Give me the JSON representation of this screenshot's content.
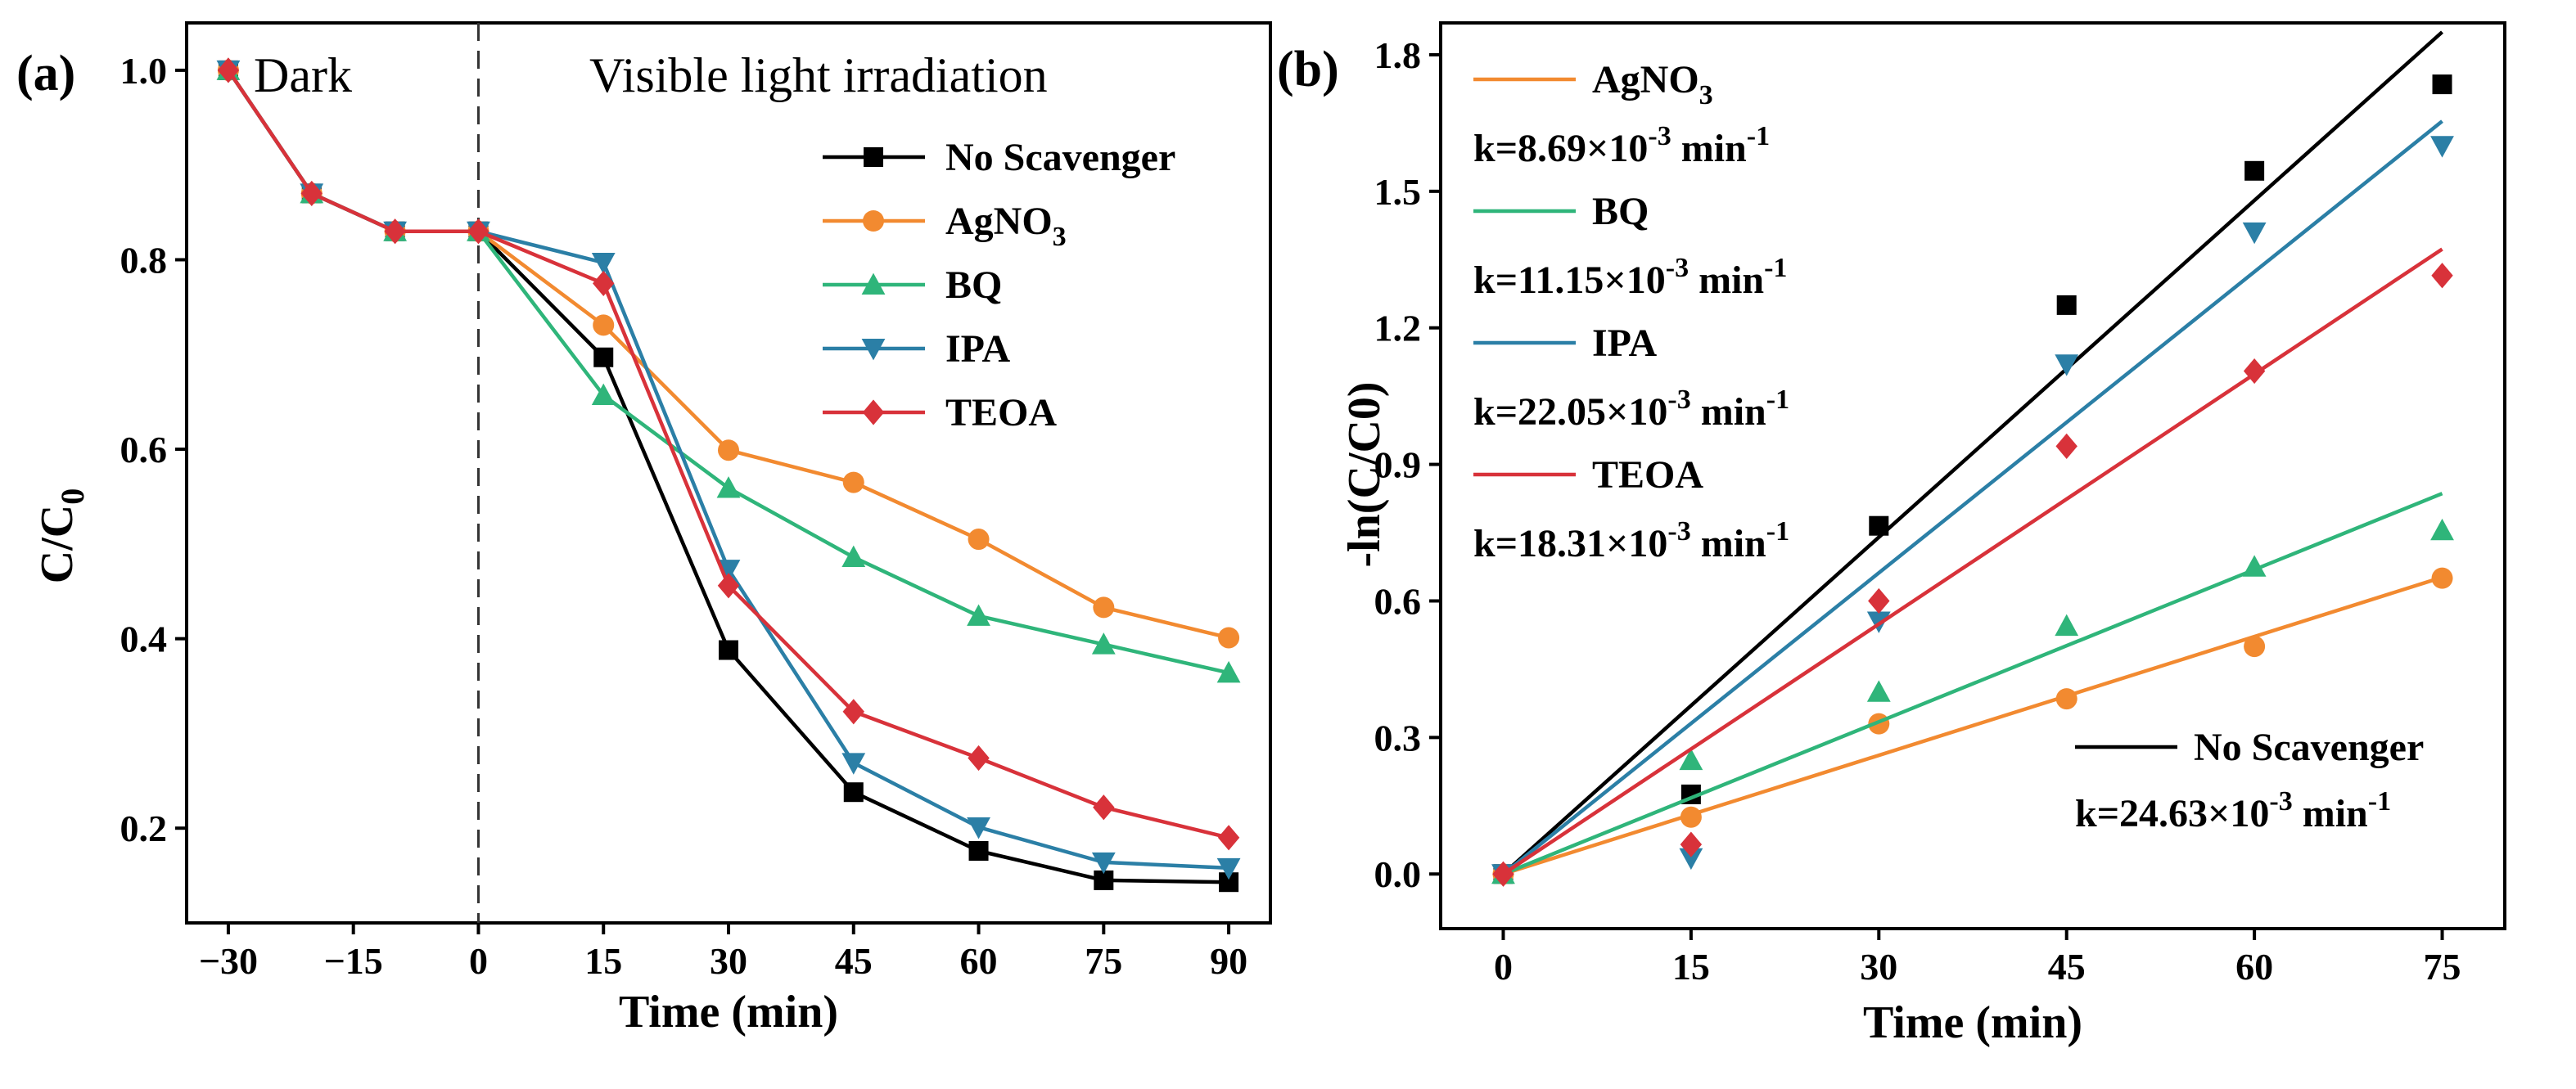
{
  "chart_data": [
    {
      "panel": "(a)",
      "type": "line",
      "xlabel": "Time (min)",
      "ylabel_main": "C/C",
      "ylabel_sub": "0",
      "xlim": [
        -35,
        95
      ],
      "ylim": [
        0.1,
        1.05
      ],
      "xticks": [
        -30,
        -15,
        0,
        15,
        30,
        45,
        60,
        75,
        90
      ],
      "yticks": [
        0.2,
        0.4,
        0.6,
        0.8,
        1.0
      ],
      "xtick_labels": [
        "−30",
        "−15",
        "0",
        "15",
        "30",
        "45",
        "60",
        "75",
        "90"
      ],
      "ytick_labels": [
        "0.2",
        "0.4",
        "0.6",
        "0.8",
        "1.0"
      ],
      "annotations": {
        "dark": "Dark",
        "light": "Visible light irradiation",
        "divider_x": 0
      },
      "legend_position": "top-right",
      "x": [
        -30,
        -20,
        -10,
        0,
        15,
        30,
        45,
        60,
        75,
        90
      ],
      "series": [
        {
          "name": "No Scavenger",
          "label_main": "No Scavenger",
          "label_sub": "",
          "color": "#000000",
          "marker": "square",
          "values": [
            1.0,
            0.87,
            0.83,
            0.83,
            0.697,
            0.388,
            0.238,
            0.176,
            0.145,
            0.143
          ]
        },
        {
          "name": "AgNO3",
          "label_main": "AgNO",
          "label_sub": "3",
          "color": "#f28a30",
          "marker": "circle",
          "values": [
            1.0,
            0.87,
            0.83,
            0.83,
            0.731,
            0.599,
            0.565,
            0.505,
            0.433,
            0.401
          ]
        },
        {
          "name": "BQ",
          "label_main": "BQ",
          "label_sub": "",
          "color": "#2fb57a",
          "marker": "triangle-up",
          "values": [
            1.0,
            0.87,
            0.83,
            0.83,
            0.657,
            0.559,
            0.486,
            0.424,
            0.394,
            0.364
          ]
        },
        {
          "name": "IPA",
          "label_main": "IPA",
          "label_sub": "",
          "color": "#2b7fa6",
          "marker": "triangle-down",
          "values": [
            1.0,
            0.87,
            0.83,
            0.83,
            0.797,
            0.473,
            0.269,
            0.201,
            0.164,
            0.158
          ]
        },
        {
          "name": "TEOA",
          "label_main": "TEOA",
          "label_sub": "",
          "color": "#d8323a",
          "marker": "diamond",
          "values": [
            1.0,
            0.87,
            0.83,
            0.83,
            0.775,
            0.456,
            0.323,
            0.274,
            0.222,
            0.19
          ]
        }
      ]
    },
    {
      "panel": "(b)",
      "type": "scatter",
      "xlabel": "Time (min)",
      "ylabel": "-ln(C/C0)",
      "xlim": [
        -5,
        80
      ],
      "ylim": [
        -0.12,
        1.87
      ],
      "xticks": [
        0,
        15,
        30,
        45,
        60,
        75
      ],
      "yticks": [
        0.0,
        0.3,
        0.6,
        0.9,
        1.2,
        1.5,
        1.8
      ],
      "xtick_labels": [
        "0",
        "15",
        "30",
        "45",
        "60",
        "75"
      ],
      "ytick_labels": [
        "0.0",
        "0.3",
        "0.6",
        "0.9",
        "1.2",
        "1.5",
        "1.8"
      ],
      "x": [
        0,
        15,
        30,
        45,
        60,
        75
      ],
      "series": [
        {
          "name": "No Scavenger",
          "label": "No Scavenger",
          "color": "#000000",
          "marker": "square",
          "k_text": "k=24.63×10",
          "k_exp": "-3",
          "k_unit": " min",
          "k_unit_exp": "-1",
          "fit_end": 1.85,
          "values": [
            0.0,
            0.175,
            0.765,
            1.25,
            1.545,
            1.735
          ]
        },
        {
          "name": "AgNO3",
          "label": "AgNO",
          "label_sub": "3",
          "color": "#f28a30",
          "marker": "circle",
          "k_text": "k=8.69×10",
          "k_exp": "-3",
          "k_unit": " min",
          "k_unit_exp": "-1",
          "fit_end": 0.652,
          "values": [
            0.0,
            0.125,
            0.33,
            0.385,
            0.5,
            0.65
          ]
        },
        {
          "name": "BQ",
          "label": "BQ",
          "label_sub": "",
          "color": "#2fb57a",
          "marker": "triangle-up",
          "k_text": "k=11.15×10",
          "k_exp": "-3",
          "k_unit": " min",
          "k_unit_exp": "-1",
          "fit_end": 0.836,
          "values": [
            0.0,
            0.25,
            0.4,
            0.545,
            0.675,
            0.755
          ]
        },
        {
          "name": "IPA",
          "label": "IPA",
          "label_sub": "",
          "color": "#2b7fa6",
          "marker": "triangle-down",
          "k_text": "k=22.05×10",
          "k_exp": "-3",
          "k_unit": " min",
          "k_unit_exp": "-1",
          "fit_end": 1.654,
          "values": [
            0.0,
            0.035,
            0.555,
            1.12,
            1.41,
            1.6
          ]
        },
        {
          "name": "TEOA",
          "label": "TEOA",
          "label_sub": "",
          "color": "#d8323a",
          "marker": "diamond",
          "k_text": "k=18.31×10",
          "k_exp": "-3",
          "k_unit": " min",
          "k_unit_exp": "-1",
          "fit_end": 1.373,
          "values": [
            0.0,
            0.065,
            0.6,
            0.94,
            1.105,
            1.315
          ]
        }
      ]
    }
  ]
}
